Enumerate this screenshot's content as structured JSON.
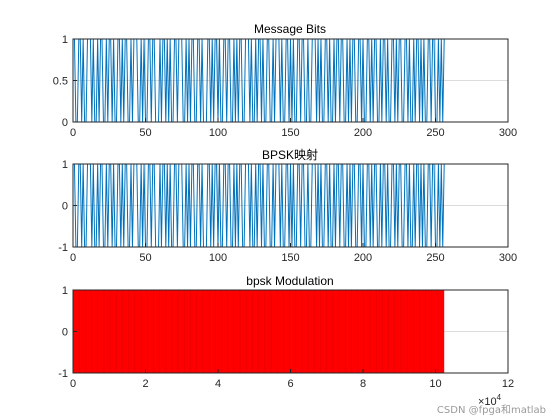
{
  "chart_data": [
    {
      "type": "line",
      "title": "Message Bits",
      "xlabel": "",
      "ylabel": "",
      "xlim": [
        0,
        300
      ],
      "ylim": [
        0,
        1
      ],
      "xticks": [
        0,
        50,
        100,
        150,
        200,
        250,
        300
      ],
      "yticks": [
        0,
        0.5,
        1
      ],
      "xtick_labels": [
        "0",
        "50",
        "100",
        "150",
        "200",
        "250",
        "300"
      ],
      "ytick_labels": [
        "0",
        "0.5",
        "1"
      ],
      "grid": true,
      "color": "#0072BD",
      "series": [
        {
          "x_range": [
            1,
            256
          ],
          "values": [
            1,
            0,
            0,
            1,
            1,
            0,
            1,
            0,
            0,
            1,
            1,
            1,
            0,
            1,
            0,
            0,
            1,
            0,
            1,
            1,
            0,
            0,
            1,
            0,
            1,
            1,
            0,
            1,
            0,
            0,
            1,
            1,
            0,
            1,
            0,
            1,
            1,
            0,
            0,
            1,
            0,
            1,
            1,
            1,
            0,
            0,
            1,
            0,
            1,
            0,
            0,
            1,
            1,
            0,
            1,
            1,
            0,
            0,
            0,
            1,
            0,
            1,
            1,
            0,
            1,
            0,
            1,
            0,
            0,
            1,
            1,
            0,
            1,
            1,
            1,
            0,
            0,
            1,
            0,
            1,
            0,
            1,
            1,
            0,
            0,
            1,
            1,
            0,
            1,
            0,
            0,
            0,
            1,
            1,
            0,
            1,
            0,
            1,
            1,
            0,
            1,
            0,
            0,
            1,
            1,
            0,
            1,
            1,
            0,
            0,
            1,
            0,
            1,
            0,
            1,
            1,
            0,
            0,
            1,
            1,
            1,
            0,
            1,
            0,
            0,
            1,
            0,
            1,
            1,
            0,
            1,
            0,
            0,
            1,
            1,
            0,
            0,
            1,
            0,
            1,
            1,
            1,
            0,
            1,
            0,
            0,
            1,
            1,
            0,
            1,
            0,
            1,
            0,
            0,
            1,
            1,
            0,
            1,
            1,
            0,
            0,
            1,
            0,
            0,
            1,
            1,
            1,
            0,
            1,
            0,
            1,
            0,
            0,
            1,
            1,
            0,
            1,
            0,
            0,
            1,
            0,
            1,
            1,
            0,
            1,
            1,
            0,
            0,
            1,
            0,
            1,
            0,
            1,
            1,
            0,
            0,
            1,
            1,
            0,
            1,
            0,
            0,
            1,
            1,
            0,
            1,
            0,
            1,
            1,
            0,
            0,
            1,
            0,
            1,
            1,
            0,
            1,
            0,
            0,
            1,
            1,
            0,
            1,
            0,
            1,
            1,
            0,
            0,
            1,
            1,
            0,
            1,
            0,
            0,
            1,
            0,
            1,
            1,
            0,
            1,
            0,
            1,
            0,
            0,
            1,
            1,
            0,
            1,
            1,
            0,
            0,
            1,
            0,
            1,
            0,
            1
          ]
        }
      ]
    },
    {
      "type": "line",
      "title": "BPSK映射",
      "xlabel": "",
      "ylabel": "",
      "xlim": [
        0,
        300
      ],
      "ylim": [
        -1,
        1
      ],
      "xticks": [
        0,
        50,
        100,
        150,
        200,
        250,
        300
      ],
      "yticks": [
        -1,
        0,
        1
      ],
      "xtick_labels": [
        "0",
        "50",
        "100",
        "150",
        "200",
        "250",
        "300"
      ],
      "ytick_labels": [
        "-1",
        "0",
        "1"
      ],
      "grid": true,
      "color": "#0072BD",
      "series": [
        {
          "derived_from": "Message Bits",
          "mapping": "2*bit-1",
          "x_range": [
            1,
            256
          ]
        }
      ]
    },
    {
      "type": "line",
      "title": "bpsk Modulation",
      "xlabel": "",
      "ylabel": "",
      "xlim": [
        0,
        120000
      ],
      "ylim": [
        -1,
        1
      ],
      "xticks": [
        0,
        20000,
        40000,
        60000,
        80000,
        100000,
        120000
      ],
      "yticks": [
        -1,
        0,
        1
      ],
      "xtick_labels": [
        "0",
        "2",
        "4",
        "6",
        "8",
        "10",
        "12"
      ],
      "ytick_labels": [
        "-1",
        "0",
        "1"
      ],
      "x_exponent_label": "×10",
      "x_exponent_power": "4",
      "grid": true,
      "color": "#FF0000",
      "series": [
        {
          "x_range": [
            0,
            102400
          ],
          "envelope": [
            -1,
            1
          ]
        }
      ]
    }
  ],
  "watermark": "CSDN @fpga和matlab"
}
